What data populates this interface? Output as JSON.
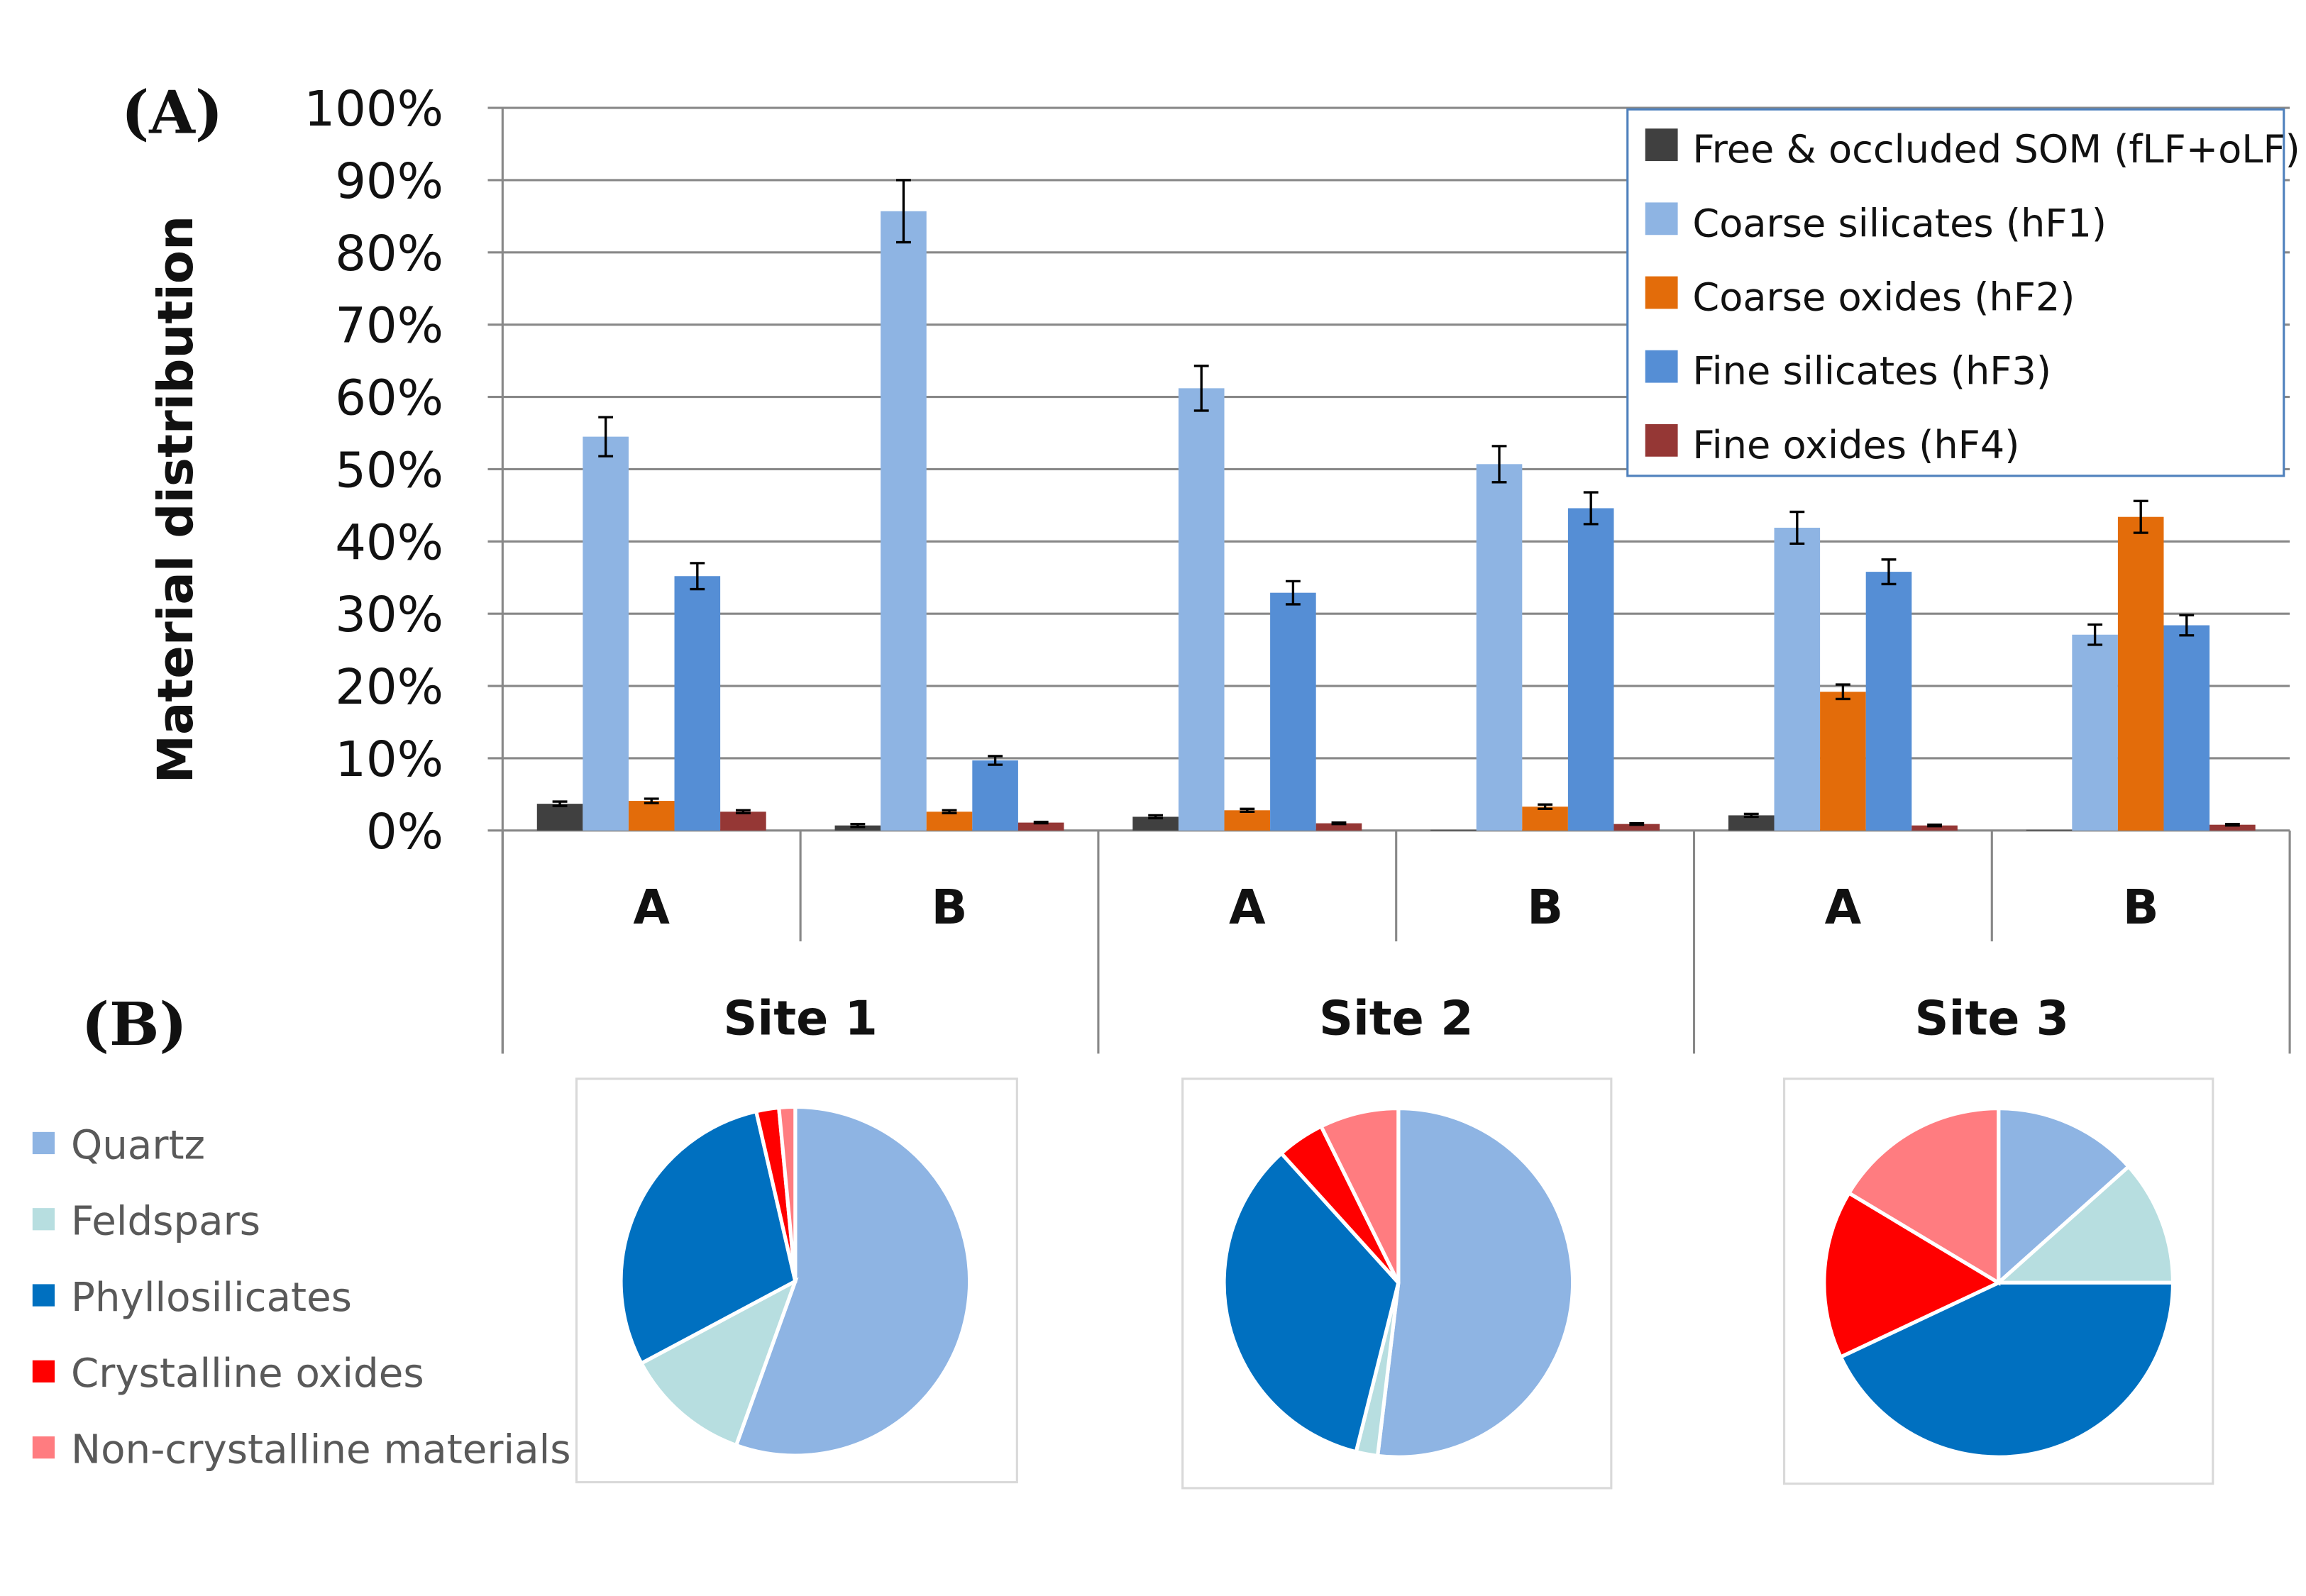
{
  "panel_labels": {
    "a": "(A)",
    "b": "(B)"
  },
  "chart_data": [
    {
      "type": "bar",
      "ylabel": "Material distribution",
      "ylim": [
        0,
        100
      ],
      "yticks": [
        "0%",
        "10%",
        "20%",
        "30%",
        "40%",
        "50%",
        "60%",
        "70%",
        "80%",
        "90%",
        "100%"
      ],
      "grid": true,
      "legend_position": "top-right",
      "categories": [
        "A",
        "B",
        "A",
        "B",
        "A",
        "B"
      ],
      "groups": [
        "Site 1",
        "Site 2",
        "Site 3"
      ],
      "series": [
        {
          "name": "Free & occluded SOM (fLF+oLF)",
          "color": "#404040",
          "values": [
            3.7,
            0.7,
            1.9,
            0.1,
            2.1,
            0.1
          ],
          "errors": [
            0.3,
            0.2,
            0.2,
            0.0,
            0.2,
            0.0
          ]
        },
        {
          "name": "Coarse silicates (hF1)",
          "color": "#8EB4E3",
          "values": [
            54.5,
            85.7,
            61.2,
            50.7,
            41.9,
            27.1
          ],
          "errors": [
            2.7,
            4.3,
            3.1,
            2.5,
            2.2,
            1.4
          ]
        },
        {
          "name": "Coarse oxides (hF2)",
          "color": "#E36C0A",
          "values": [
            4.1,
            2.6,
            2.8,
            3.3,
            19.2,
            43.4
          ],
          "errors": [
            0.3,
            0.2,
            0.2,
            0.3,
            1.0,
            2.2
          ]
        },
        {
          "name": "Fine silicates (hF3)",
          "color": "#558ED5",
          "values": [
            35.2,
            9.7,
            32.9,
            44.6,
            35.8,
            28.4
          ],
          "errors": [
            1.8,
            0.6,
            1.6,
            2.2,
            1.7,
            1.4
          ]
        },
        {
          "name": "Fine oxides (hF4)",
          "color": "#953735",
          "values": [
            2.6,
            1.1,
            1.0,
            0.9,
            0.7,
            0.8
          ],
          "errors": [
            0.2,
            0.1,
            0.1,
            0.1,
            0.1,
            0.1
          ]
        }
      ]
    },
    {
      "type": "pie",
      "legend_position": "left",
      "labels": [
        "Quartz",
        "Feldspars",
        "Phyllosilicates",
        "Crystalline oxides",
        "Non-crystalline materials"
      ],
      "colors": [
        "#8EB4E3",
        "#B7DEE0",
        "#0070C0",
        "#FF0000",
        "#FF7C80"
      ],
      "pies": [
        {
          "group": "Site 1",
          "values": [
            55.5,
            11.7,
            29.2,
            2.1,
            1.5
          ]
        },
        {
          "group": "Site 2",
          "values": [
            51.9,
            2.0,
            34.4,
            4.4,
            7.3
          ]
        },
        {
          "group": "Site 3",
          "values": [
            13.4,
            11.6,
            43.0,
            15.6,
            16.4
          ]
        }
      ]
    }
  ]
}
